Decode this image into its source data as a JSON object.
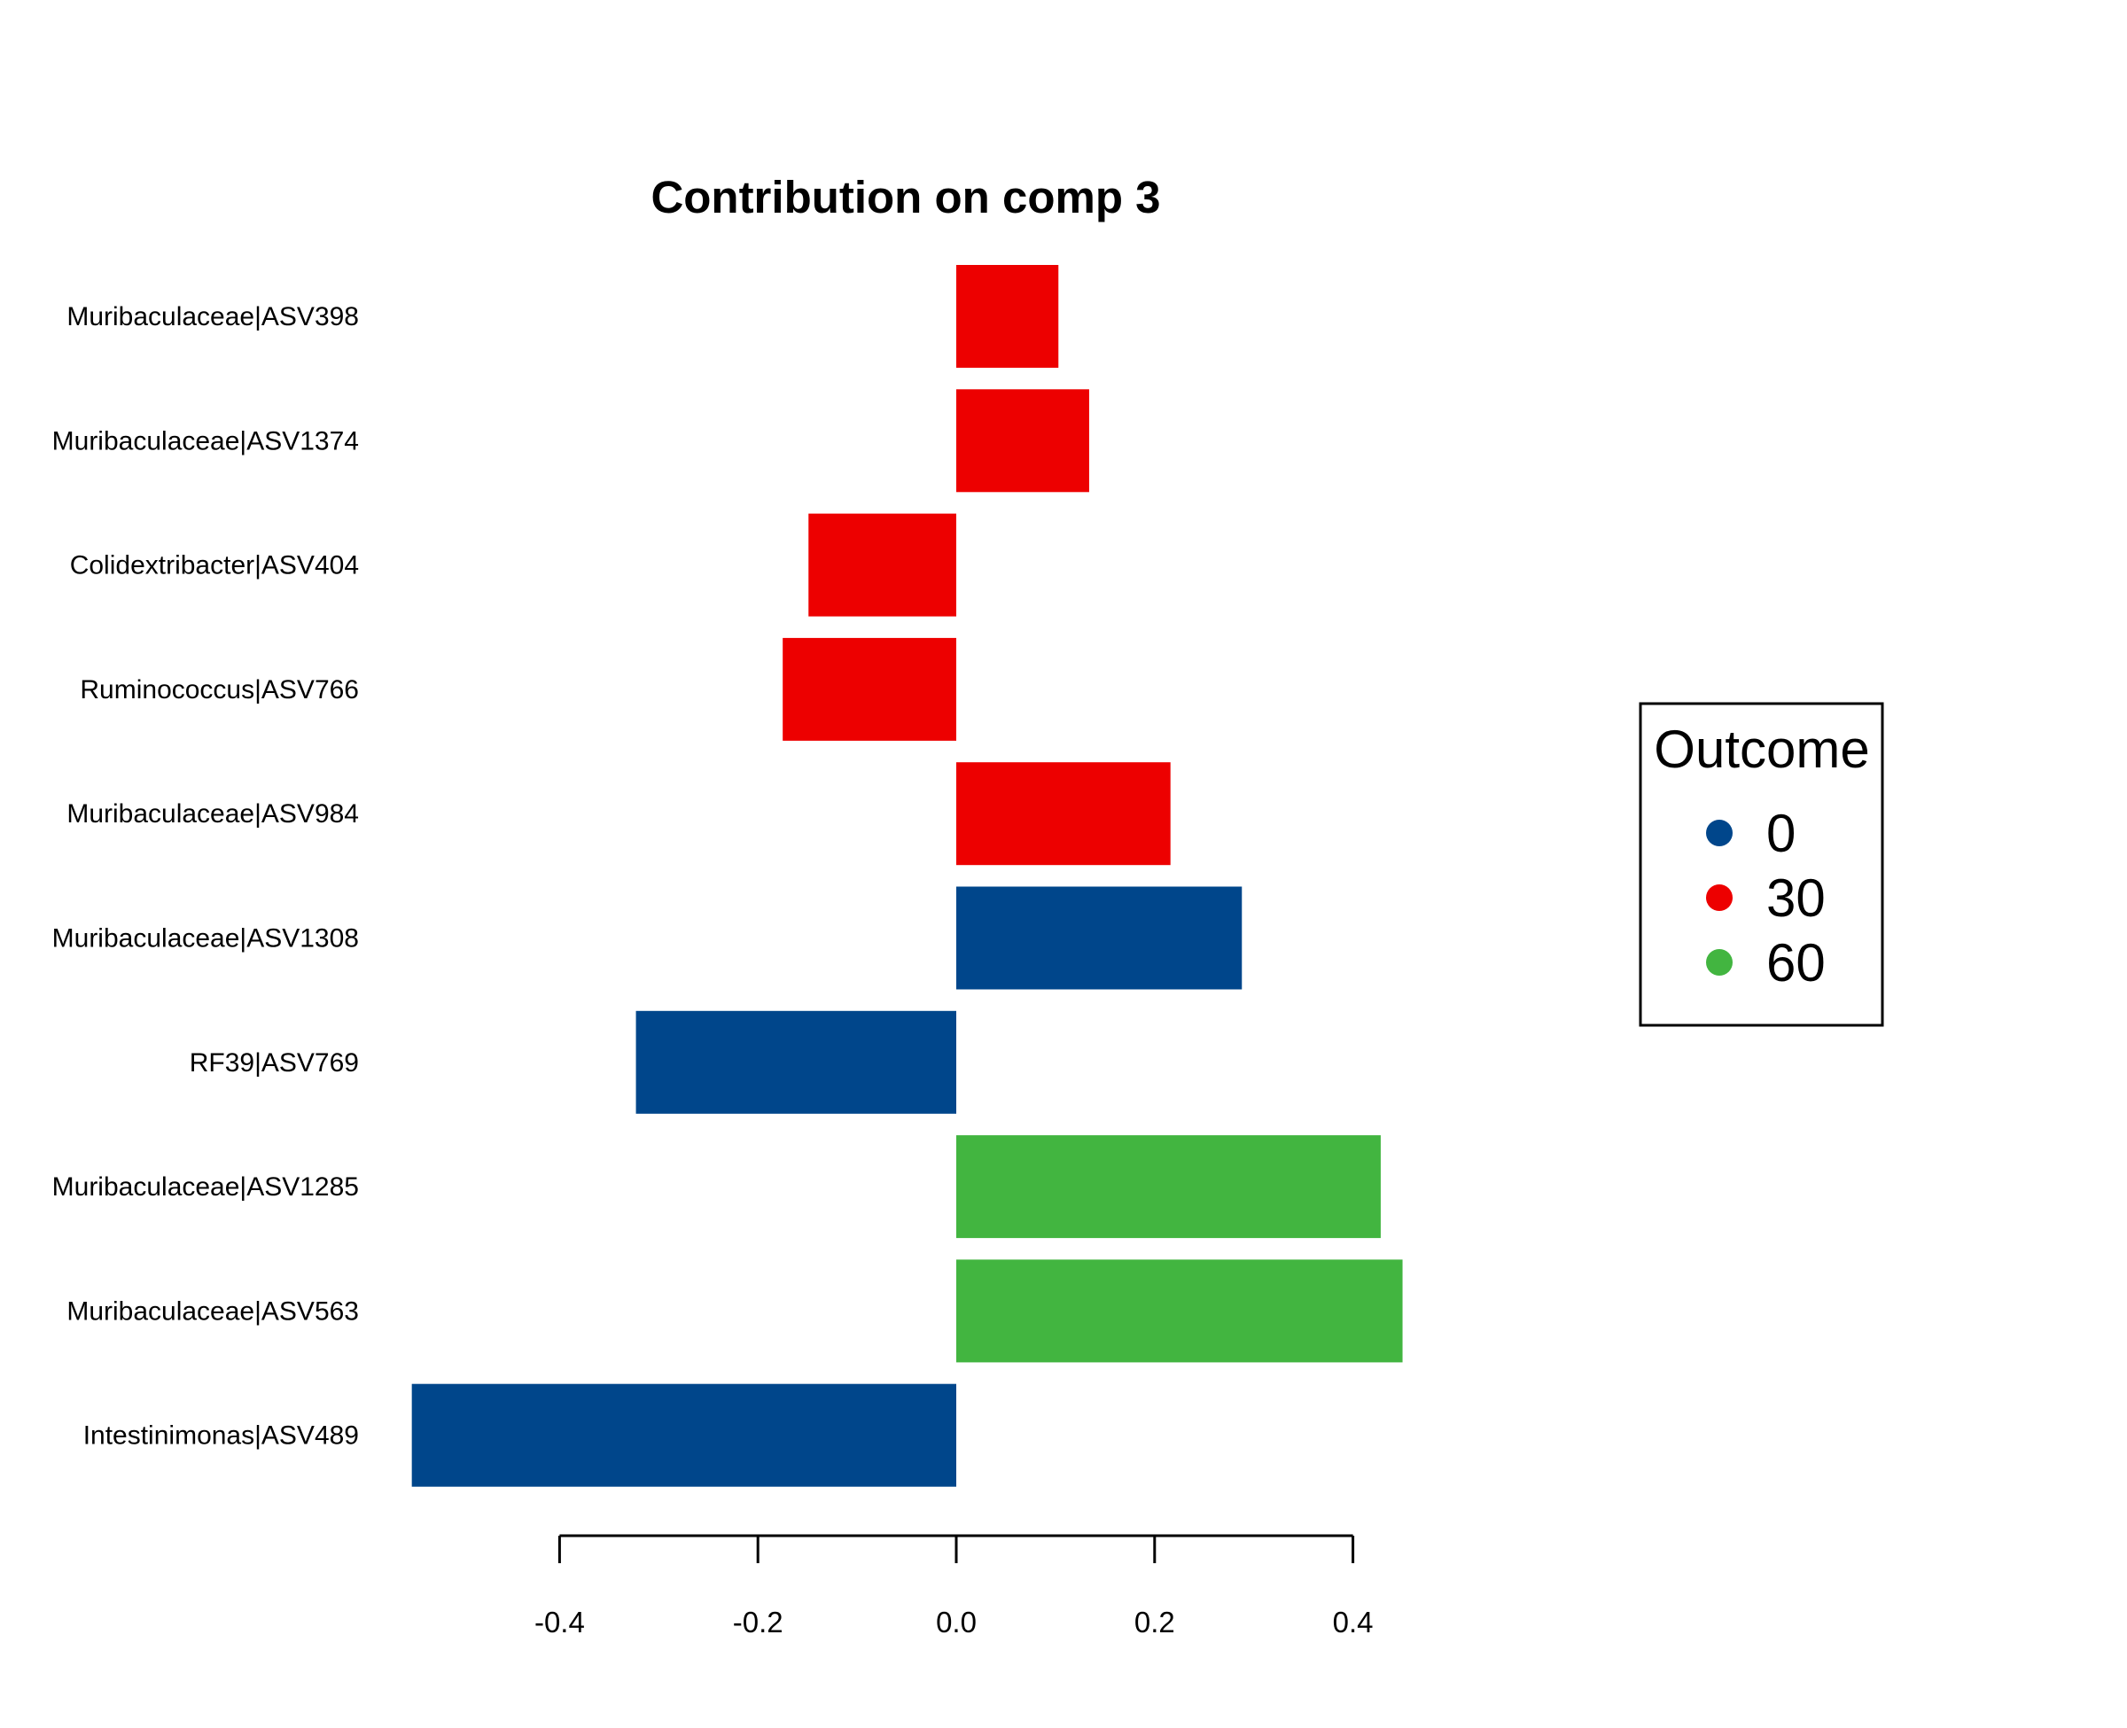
{
  "chart_data": {
    "type": "bar",
    "orientation": "horizontal",
    "title": "Contribution on comp 3",
    "xlabel": "",
    "ylabel": "",
    "xlim": [
      -0.55,
      0.45
    ],
    "x_ticks": [
      -0.4,
      -0.2,
      0.0,
      0.2,
      0.4
    ],
    "x_tick_labels": [
      "-0.4",
      "-0.2",
      "0.0",
      "0.2",
      "0.4"
    ],
    "grid": false,
    "categories": [
      "Muribaculaceae|ASV398",
      "Muribaculaceae|ASV1374",
      "Colidextribacter|ASV404",
      "Ruminococcus|ASV766",
      "Muribaculaceae|ASV984",
      "Muribaculaceae|ASV1308",
      "RF39|ASV769",
      "Muribaculaceae|ASV1285",
      "Muribaculaceae|ASV563",
      "Intestinimonas|ASV489"
    ],
    "values": [
      0.103,
      0.134,
      -0.149,
      -0.175,
      0.216,
      0.288,
      -0.323,
      0.428,
      0.45,
      -0.549
    ],
    "groups": [
      "30",
      "30",
      "30",
      "30",
      "30",
      "0",
      "0",
      "60",
      "60",
      "0"
    ],
    "legend": {
      "title": "Outcome",
      "position": "right",
      "entries": [
        {
          "label": "0",
          "color": "#00468B"
        },
        {
          "label": "30",
          "color": "#ED0000"
        },
        {
          "label": "60",
          "color": "#42B540"
        }
      ]
    }
  }
}
